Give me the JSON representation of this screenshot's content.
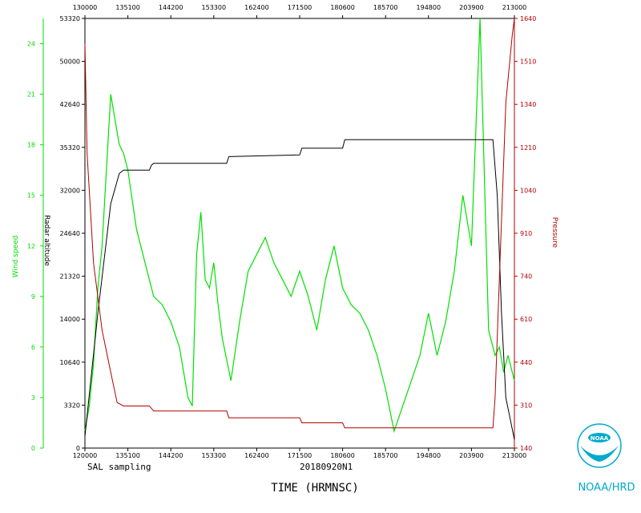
{
  "colors": {
    "wind": "#00e000",
    "altitude": "#000000",
    "pressure": "#b00000",
    "noaa": "#00aacc",
    "frame": "#000000"
  },
  "chart_data": {
    "type": "line",
    "xlabel": "TIME (HRMNSC)",
    "x_ticks": [
      "120000",
      "135100",
      "144200",
      "153300",
      "162400",
      "171500",
      "180600",
      "185700",
      "194800",
      "203900",
      "213000"
    ],
    "x_top_ticks": [
      "130000",
      "135100",
      "144200",
      "153300",
      "162400",
      "171500",
      "180600",
      "185700",
      "194800",
      "203900",
      "213000"
    ],
    "left_axis_wind": {
      "label": "Wind speed",
      "ylim": [
        0,
        25.5
      ],
      "ticks": [
        "0",
        "3",
        "6",
        "9",
        "12",
        "15",
        "18",
        "21",
        "24"
      ]
    },
    "left_axis_alt": {
      "label": "Radar altitude",
      "ticks": [
        "0",
        "3320",
        "10640",
        "14000",
        "21320",
        "24640",
        "32000",
        "35320",
        "42640",
        "50000",
        "53320"
      ]
    },
    "right_axis_pressure": {
      "label": "Pressure",
      "ticks": [
        "140",
        "310",
        "440",
        "610",
        "740",
        "910",
        "1040",
        "1210",
        "1340",
        "1510",
        "1640"
      ]
    },
    "series": [
      {
        "name": "Wind speed",
        "axis": "wind",
        "x": [
          0.0,
          0.01,
          0.02,
          0.03,
          0.04,
          0.05,
          0.06,
          0.07,
          0.08,
          0.09,
          0.1,
          0.12,
          0.14,
          0.16,
          0.18,
          0.2,
          0.22,
          0.24,
          0.25,
          0.26,
          0.27,
          0.28,
          0.29,
          0.3,
          0.31,
          0.32,
          0.34,
          0.36,
          0.38,
          0.4,
          0.42,
          0.44,
          0.46,
          0.48,
          0.5,
          0.52,
          0.54,
          0.56,
          0.58,
          0.6,
          0.62,
          0.64,
          0.66,
          0.68,
          0.7,
          0.72,
          0.74,
          0.76,
          0.78,
          0.8,
          0.82,
          0.84,
          0.86,
          0.88,
          0.9,
          0.92,
          0.94,
          0.955,
          0.965,
          0.975,
          0.985,
          1.0
        ],
        "y": [
          1.0,
          2.5,
          5.0,
          9.5,
          12.0,
          16.5,
          21.0,
          19.5,
          18.0,
          17.5,
          16.5,
          13.0,
          11.0,
          9.0,
          8.5,
          7.5,
          6.0,
          3.0,
          2.5,
          11.5,
          14.0,
          10.0,
          9.5,
          11.0,
          8.5,
          6.5,
          4.0,
          7.5,
          10.5,
          11.5,
          12.5,
          11.0,
          10.0,
          9.0,
          10.5,
          9.0,
          7.0,
          10.0,
          12.0,
          9.5,
          8.5,
          8.0,
          7.0,
          5.5,
          3.5,
          1.0,
          2.5,
          4.0,
          5.5,
          8.0,
          5.5,
          7.5,
          10.5,
          15.0,
          12.0,
          25.5,
          7.0,
          5.5,
          6.0,
          4.5,
          5.5,
          4.0
        ]
      },
      {
        "name": "Radar altitude",
        "axis": "wind",
        "x": [
          0.0,
          0.03,
          0.06,
          0.08,
          0.09,
          0.1,
          0.11,
          0.15,
          0.155,
          0.16,
          0.2,
          0.33,
          0.335,
          0.5,
          0.505,
          0.6,
          0.605,
          0.95,
          0.96,
          0.97,
          0.98,
          1.0
        ],
        "y": [
          0.7,
          8.0,
          14.5,
          16.3,
          16.5,
          16.5,
          16.5,
          16.5,
          16.8,
          16.9,
          16.9,
          16.9,
          17.3,
          17.4,
          17.8,
          17.8,
          18.3,
          18.3,
          15.0,
          8.0,
          3.0,
          0.5
        ]
      },
      {
        "name": "Pressure",
        "axis": "wind",
        "x": [
          0.0,
          0.005,
          0.02,
          0.04,
          0.06,
          0.075,
          0.09,
          0.15,
          0.16,
          0.33,
          0.335,
          0.5,
          0.505,
          0.6,
          0.605,
          0.95,
          0.955,
          0.965,
          0.98,
          0.995,
          1.0
        ],
        "y": [
          24.0,
          17.5,
          11.0,
          7.0,
          4.5,
          2.7,
          2.5,
          2.5,
          2.2,
          2.2,
          1.8,
          1.8,
          1.5,
          1.5,
          1.2,
          1.2,
          3.0,
          10.0,
          20.5,
          24.5,
          25.5
        ]
      }
    ],
    "annotations": {
      "left_bottom": "SAL sampling",
      "center_bottom": "20180920N1"
    }
  },
  "logo": {
    "text": "NOAA/HRD",
    "emblem_text": "NOAA"
  }
}
